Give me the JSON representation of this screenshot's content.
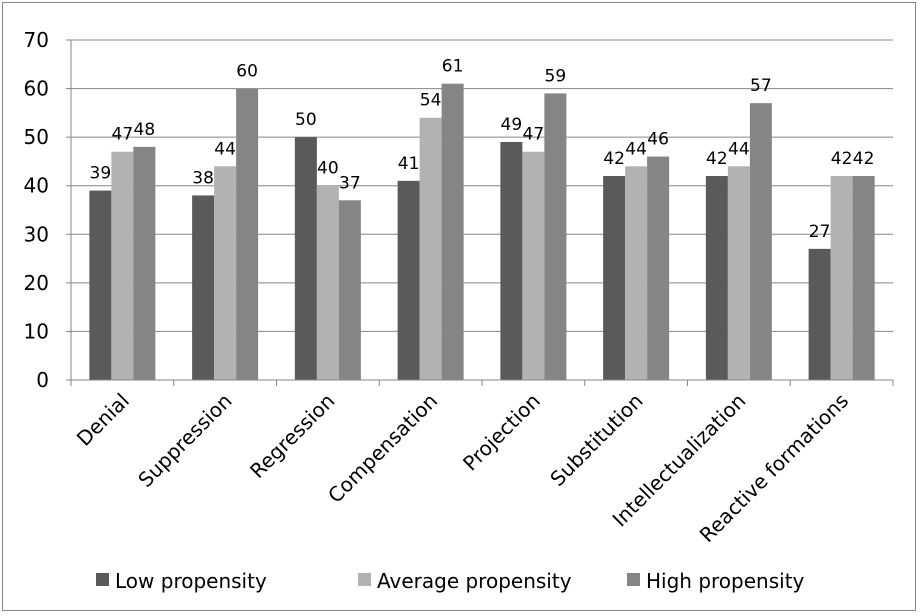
{
  "chart_data": {
    "type": "bar",
    "title": "",
    "xlabel": "",
    "ylabel": "",
    "ylim": [
      0,
      70
    ],
    "yticks": [
      0,
      10,
      20,
      30,
      40,
      50,
      60,
      70
    ],
    "grid": true,
    "legend_position": "bottom",
    "categories": [
      "Denial",
      "Suppression",
      "Regression",
      "Compensation",
      "Projection",
      "Substitution",
      "Intellectualization",
      "Reactive formations"
    ],
    "series": [
      {
        "name": "Low propensity",
        "color": "#5a5a5a",
        "values": [
          39,
          38,
          50,
          41,
          49,
          42,
          42,
          27
        ]
      },
      {
        "name": "Average propensity",
        "color": "#b2b2b2",
        "values": [
          47,
          44,
          40,
          54,
          47,
          44,
          44,
          42
        ]
      },
      {
        "name": "High propensity",
        "color": "#858585",
        "values": [
          48,
          60,
          37,
          61,
          59,
          46,
          57,
          42
        ]
      }
    ]
  }
}
